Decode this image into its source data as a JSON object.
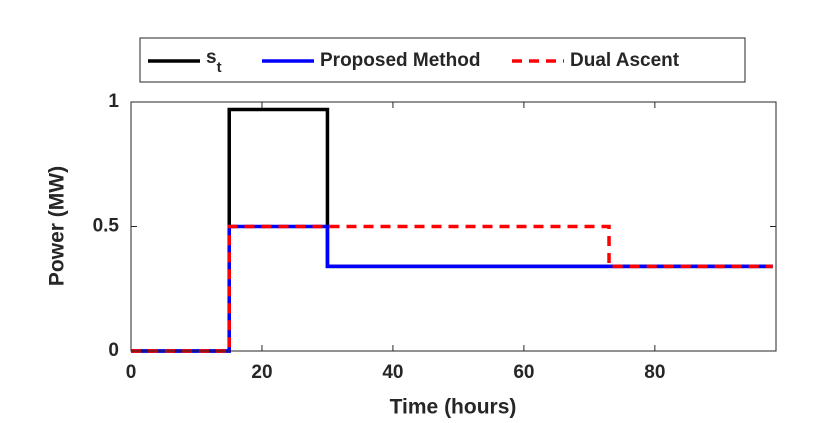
{
  "chart_data": {
    "type": "line",
    "x_label": "Time (hours)",
    "y_label": "Power (MW)",
    "x": [
      0,
      15,
      15,
      30,
      30,
      73,
      73,
      98
    ],
    "series": [
      {
        "name": "s_t",
        "color": "#000000",
        "dash": "solid",
        "values": [
          0,
          0,
          0.97,
          0.97,
          0.34,
          0.34,
          0.34,
          0.34
        ]
      },
      {
        "name": "Proposed Method",
        "color": "#0000ff",
        "dash": "solid",
        "values": [
          0,
          0,
          0.5,
          0.5,
          0.34,
          0.34,
          0.34,
          0.34
        ]
      },
      {
        "name": "Dual Ascent",
        "color": "#ff0000",
        "dash": "dashed",
        "values": [
          0,
          0,
          0.5,
          0.5,
          0.5,
          0.5,
          0.34,
          0.34
        ]
      }
    ],
    "xlim": [
      0,
      98.5
    ],
    "xticks": [
      0,
      20,
      40,
      60,
      80
    ],
    "ylim": [
      0,
      1
    ],
    "yticks": [
      0,
      0.5,
      1
    ],
    "legend": "top"
  }
}
